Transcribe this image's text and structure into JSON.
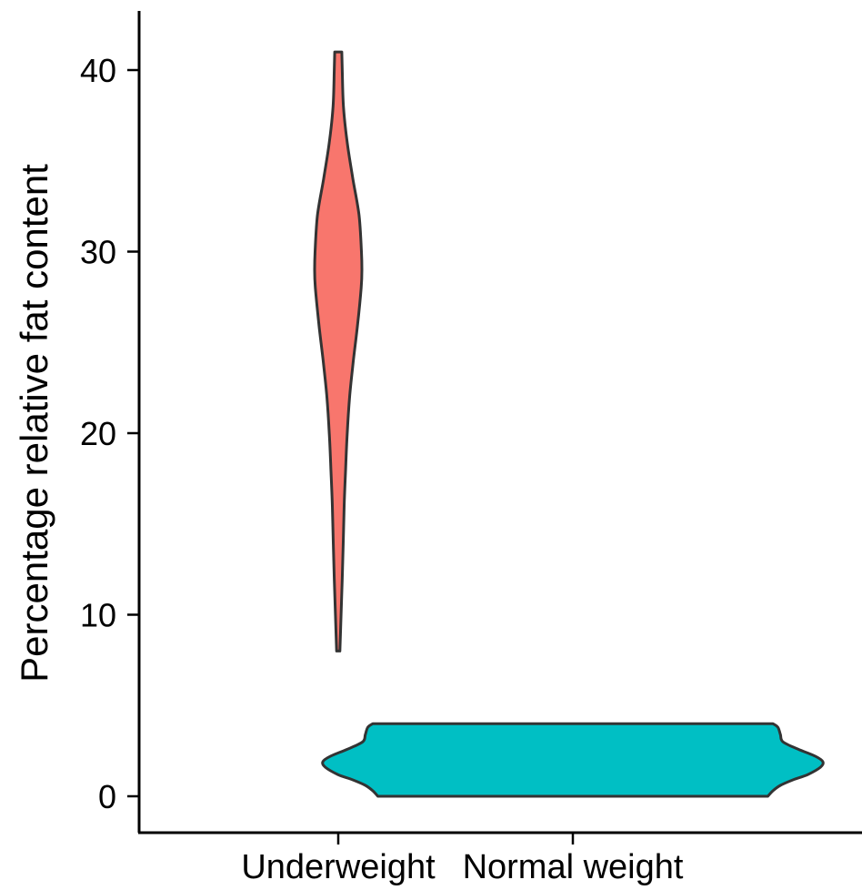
{
  "chart_data": {
    "type": "violin",
    "title": "",
    "xlabel": "",
    "ylabel": "Percentage relative fat content",
    "ylim": [
      -2,
      42
    ],
    "yticks": [
      0,
      10,
      20,
      30,
      40
    ],
    "ytick_labels": [
      "0",
      "10",
      "20",
      "30",
      "40"
    ],
    "categories": [
      "Underweight",
      "Normal weight"
    ],
    "grid": false,
    "legend": "none",
    "series": [
      {
        "category": "Underweight",
        "color": "#F8766D",
        "min": 8,
        "max": 41,
        "density_profile": [
          [
            8,
            0.07
          ],
          [
            10,
            0.12
          ],
          [
            12,
            0.17
          ],
          [
            14,
            0.21
          ],
          [
            16,
            0.25
          ],
          [
            18,
            0.31
          ],
          [
            20,
            0.38
          ],
          [
            22,
            0.48
          ],
          [
            24,
            0.64
          ],
          [
            26,
            0.82
          ],
          [
            28,
            0.97
          ],
          [
            29,
            1.0
          ],
          [
            30,
            0.98
          ],
          [
            32,
            0.88
          ],
          [
            34,
            0.62
          ],
          [
            36,
            0.38
          ],
          [
            38,
            0.22
          ],
          [
            40,
            0.17
          ],
          [
            41,
            0.15
          ]
        ]
      },
      {
        "category": "Normal weight",
        "color": "#00BFC4",
        "min": 0,
        "max": 4,
        "density_profile": [
          [
            0,
            0.78
          ],
          [
            0.3,
            0.8
          ],
          [
            0.6,
            0.83
          ],
          [
            0.9,
            0.88
          ],
          [
            1.2,
            0.94
          ],
          [
            1.6,
            0.99
          ],
          [
            1.9,
            1.0
          ],
          [
            2.2,
            0.97
          ],
          [
            2.6,
            0.9
          ],
          [
            3.0,
            0.84
          ],
          [
            3.4,
            0.83
          ],
          [
            3.8,
            0.82
          ],
          [
            4,
            0.8
          ]
        ]
      }
    ]
  }
}
